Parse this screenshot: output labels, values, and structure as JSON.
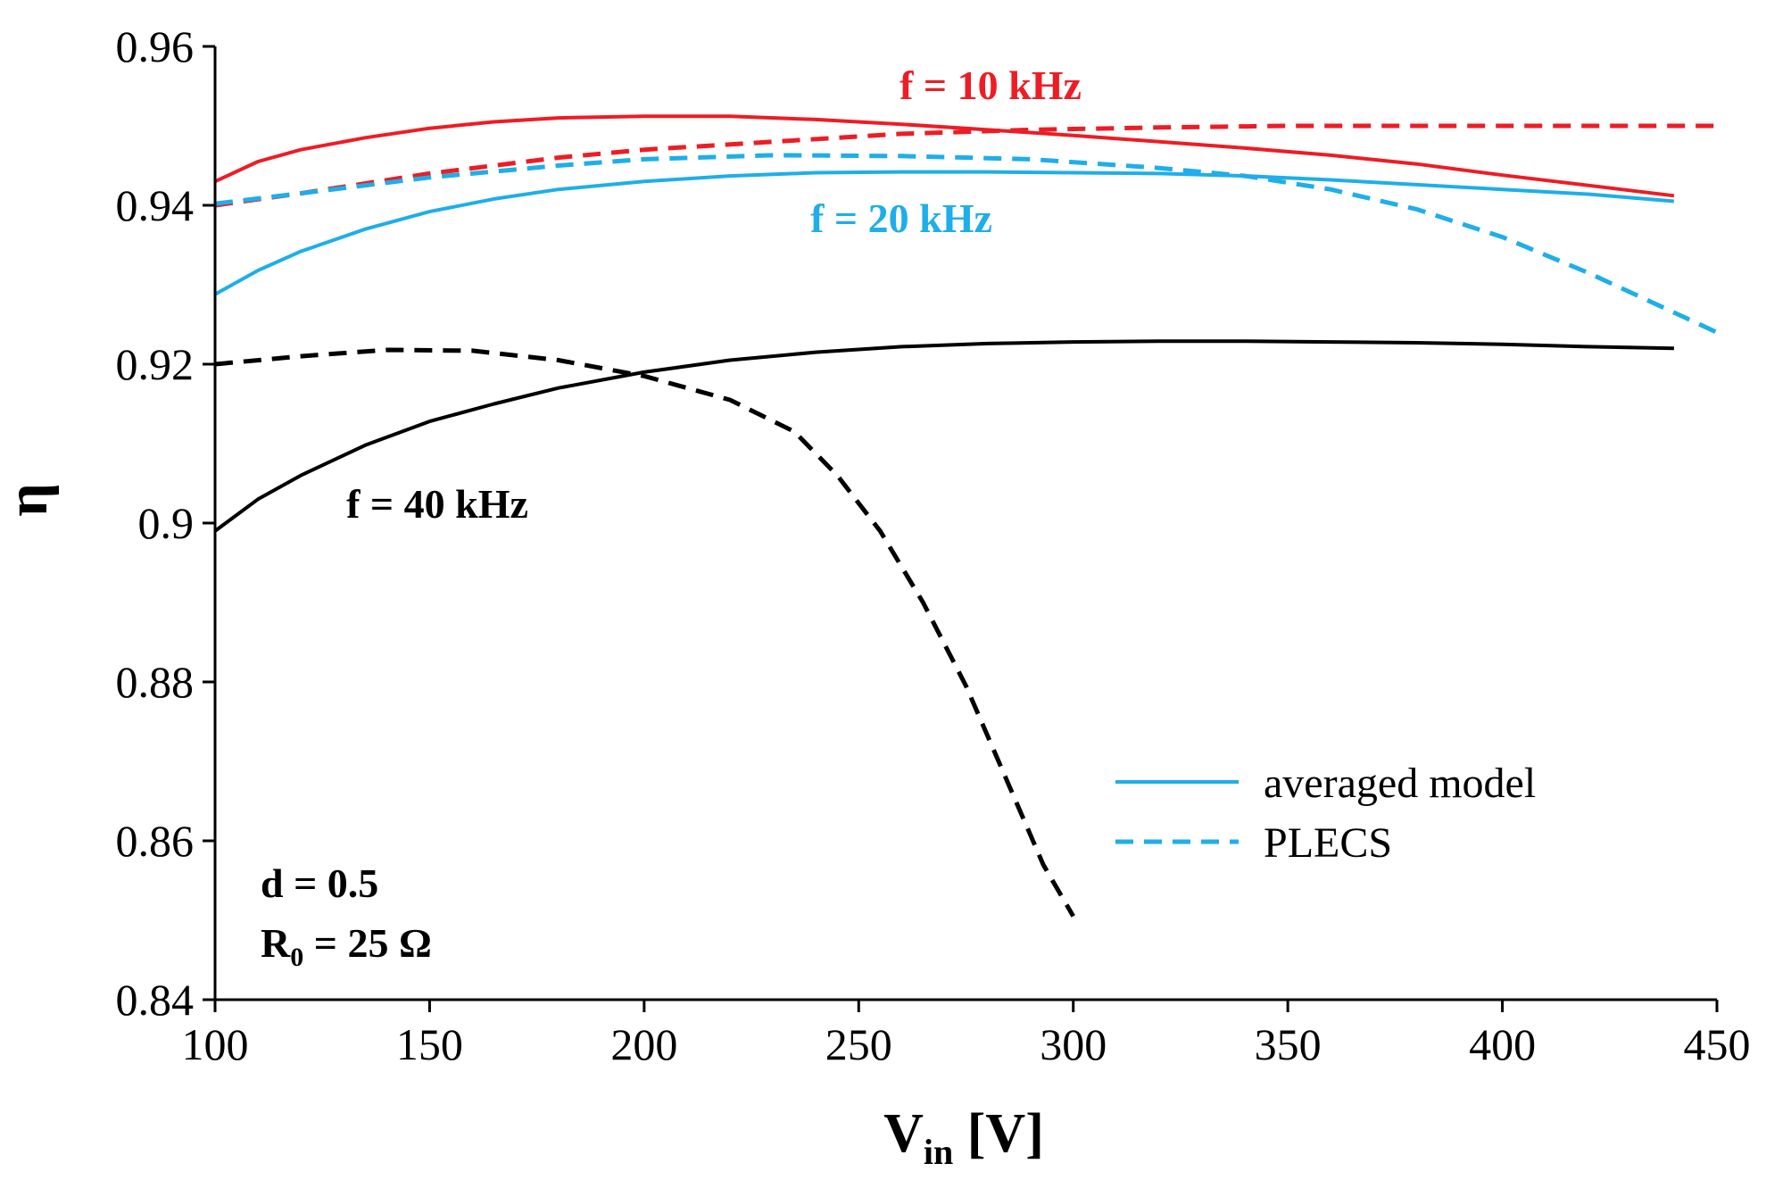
{
  "chart_data": {
    "type": "line",
    "xlabel": {
      "main": "V",
      "sub": "in",
      "unit": " [V]"
    },
    "ylabel": "η",
    "xlim": [
      100,
      450
    ],
    "ylim": [
      0.84,
      0.96
    ],
    "xticks": [
      "100",
      "150",
      "200",
      "250",
      "300",
      "350",
      "400",
      "450"
    ],
    "yticks": [
      "0.84",
      "0.86",
      "0.88",
      "0.9",
      "0.92",
      "0.94",
      "0.96"
    ],
    "grid": false,
    "legend": {
      "placement": "lower-right",
      "entries": [
        {
          "label": "averaged model",
          "style": "solid",
          "color": "#1EAEEA"
        },
        {
          "label": "PLECS",
          "style": "dashed",
          "color": "#1EAEEA"
        }
      ]
    },
    "annotations": [
      {
        "text": "f = 10 kHz",
        "color": "#EE1C24"
      },
      {
        "text": "f = 20 kHz",
        "color": "#1EAEEA"
      },
      {
        "text": "f = 40 kHz",
        "color": "#000000"
      },
      {
        "text": "d = 0.5",
        "color": "#000000"
      },
      {
        "main": "R",
        "sub": "0",
        "rest": " = 25 Ω",
        "color": "#000000"
      }
    ],
    "series": [
      {
        "frequency": "10 kHz",
        "model": "averaged model",
        "style": "solid",
        "color": "#EE1C24",
        "x": [
          100,
          110,
          120,
          135,
          150,
          165,
          180,
          200,
          220,
          240,
          260,
          280,
          300,
          320,
          340,
          360,
          380,
          400,
          420,
          440
        ],
        "y": [
          0.943,
          0.9455,
          0.947,
          0.9485,
          0.9497,
          0.9505,
          0.951,
          0.9512,
          0.9512,
          0.9508,
          0.9502,
          0.9495,
          0.9488,
          0.948,
          0.9472,
          0.9463,
          0.9452,
          0.9438,
          0.9425,
          0.9412
        ]
      },
      {
        "frequency": "10 kHz",
        "model": "PLECS",
        "style": "dashed",
        "color": "#EE1C24",
        "x": [
          100,
          120,
          150,
          180,
          200,
          230,
          260,
          290,
          320,
          350,
          400,
          450
        ],
        "y": [
          0.94,
          0.9415,
          0.944,
          0.946,
          0.947,
          0.948,
          0.949,
          0.9495,
          0.9498,
          0.95,
          0.95,
          0.95
        ]
      },
      {
        "frequency": "20 kHz",
        "model": "averaged model",
        "style": "solid",
        "color": "#1EAEEA",
        "x": [
          100,
          110,
          120,
          135,
          150,
          165,
          180,
          200,
          220,
          240,
          260,
          280,
          300,
          320,
          340,
          360,
          380,
          400,
          420,
          440
        ],
        "y": [
          0.9288,
          0.9318,
          0.9342,
          0.937,
          0.9392,
          0.9408,
          0.942,
          0.943,
          0.9437,
          0.9441,
          0.9442,
          0.9442,
          0.9441,
          0.944,
          0.9437,
          0.9432,
          0.9426,
          0.942,
          0.9414,
          0.9405
        ]
      },
      {
        "frequency": "20 kHz",
        "model": "PLECS",
        "style": "dashed",
        "color": "#1EAEEA",
        "x": [
          100,
          120,
          150,
          180,
          200,
          230,
          260,
          290,
          320,
          340,
          360,
          380,
          400,
          420,
          440,
          450
        ],
        "y": [
          0.9402,
          0.9415,
          0.9435,
          0.945,
          0.9458,
          0.9463,
          0.9462,
          0.9458,
          0.9447,
          0.9437,
          0.942,
          0.9395,
          0.936,
          0.9315,
          0.9265,
          0.924
        ]
      },
      {
        "frequency": "40 kHz",
        "model": "averaged model",
        "style": "solid",
        "color": "#000000",
        "x": [
          100,
          110,
          120,
          135,
          150,
          165,
          180,
          200,
          220,
          240,
          260,
          280,
          300,
          320,
          340,
          360,
          380,
          400,
          420,
          440
        ],
        "y": [
          0.899,
          0.903,
          0.906,
          0.9098,
          0.9128,
          0.915,
          0.917,
          0.919,
          0.9205,
          0.9215,
          0.9222,
          0.9226,
          0.9228,
          0.9229,
          0.9229,
          0.9228,
          0.9227,
          0.9225,
          0.9222,
          0.922
        ]
      },
      {
        "frequency": "40 kHz",
        "model": "PLECS",
        "style": "dashed",
        "color": "#000000",
        "x": [
          100,
          120,
          140,
          160,
          180,
          200,
          220,
          235,
          245,
          255,
          265,
          275,
          285,
          293,
          300
        ],
        "y": [
          0.92,
          0.921,
          0.9218,
          0.9217,
          0.9205,
          0.9185,
          0.9155,
          0.9115,
          0.906,
          0.899,
          0.89,
          0.8795,
          0.867,
          0.857,
          0.8505
        ]
      }
    ]
  }
}
